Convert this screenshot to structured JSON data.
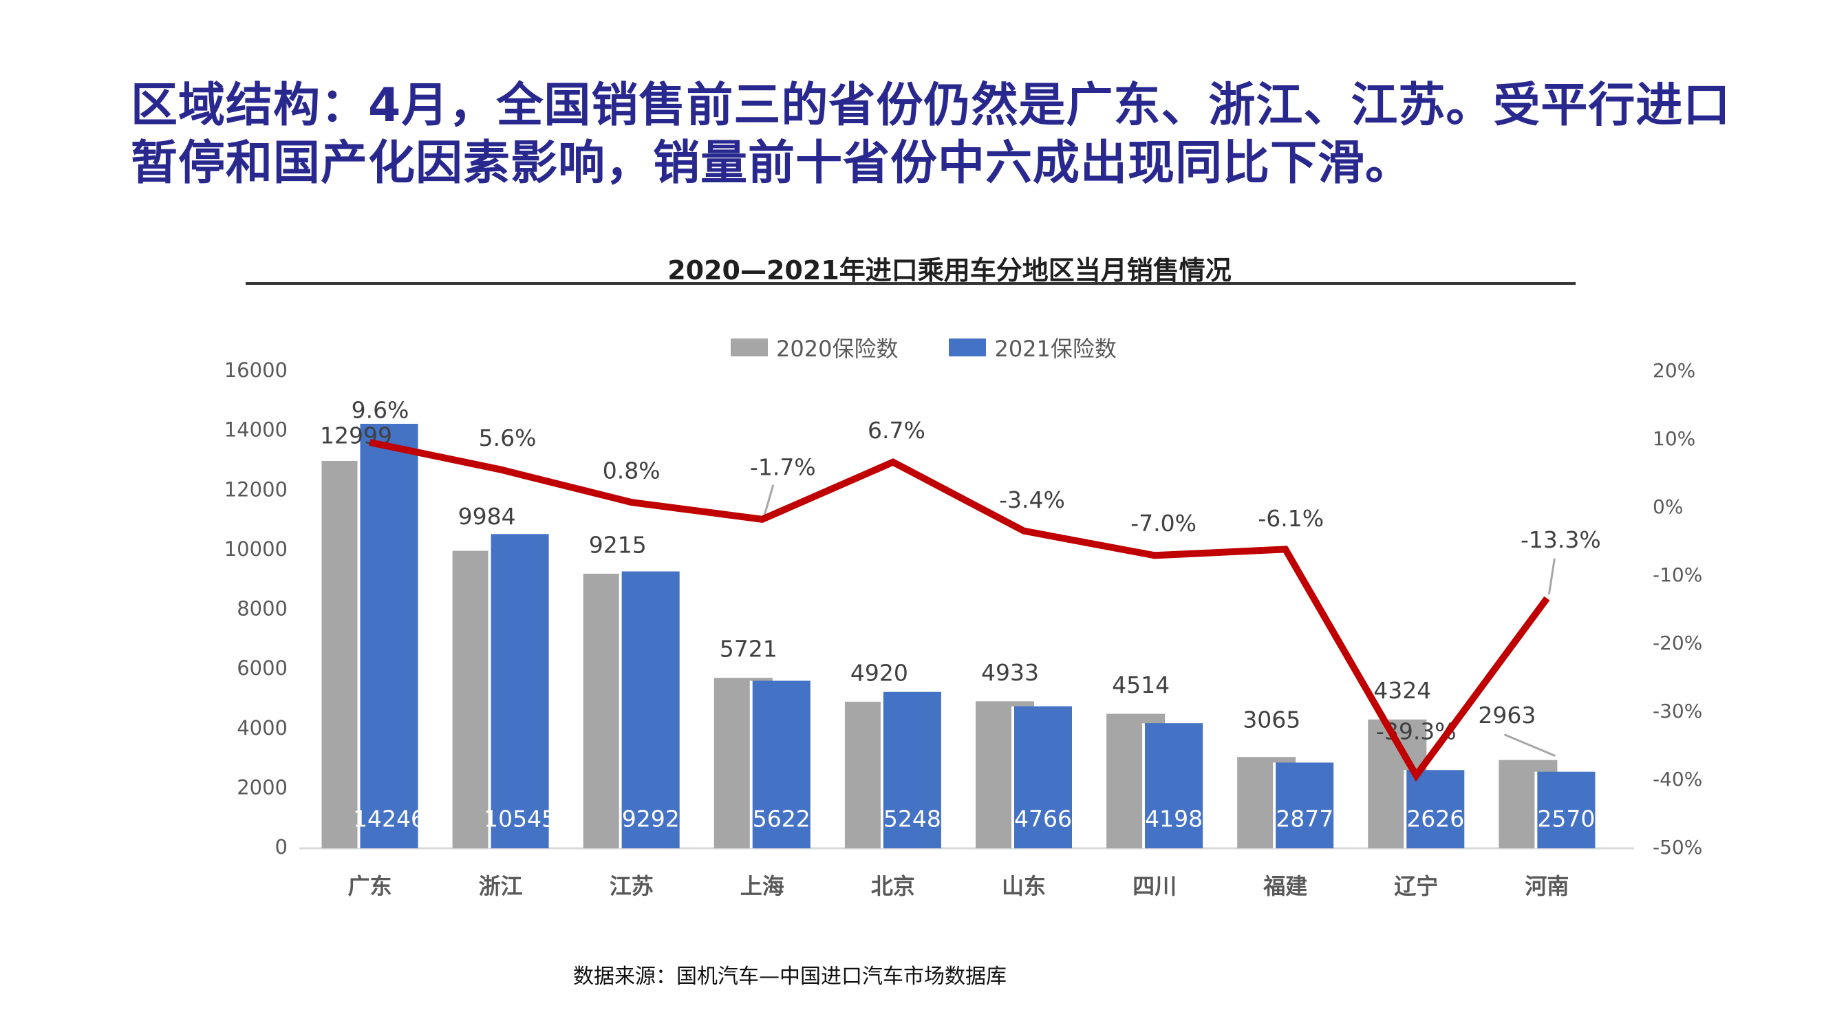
{
  "page": {
    "title_lines": [
      "区域结构：4月，全国销售前三的省份仍然是广东、浙江、江苏。受平行进口",
      "暂停和国产化因素影响，销量前十省份中六成出现同比下滑。"
    ],
    "title_color": "#28288f",
    "source": "数据来源：国机汽车—中国进口汽车市场数据库"
  },
  "chart_data": {
    "type": "bar",
    "title": "2020—2021年进口乘用车分地区当月销售情况",
    "categories": [
      "广东",
      "浙江",
      "江苏",
      "上海",
      "北京",
      "山东",
      "四川",
      "福建",
      "辽宁",
      "河南"
    ],
    "series": [
      {
        "name": "2020保险数",
        "type": "bar",
        "color": "#a6a6a6",
        "values": [
          12999,
          9984,
          9215,
          5721,
          4920,
          4933,
          4514,
          3065,
          4324,
          2963
        ]
      },
      {
        "name": "2021保险数",
        "type": "bar",
        "color": "#4472c4",
        "values": [
          14246,
          10545,
          9292,
          5622,
          5248,
          4766,
          4198,
          2877,
          2626,
          2570
        ]
      },
      {
        "type": "line",
        "color": "#c00000",
        "axis": "right",
        "values": [
          9.6,
          5.6,
          0.8,
          -1.7,
          6.7,
          -3.4,
          -7.0,
          -6.1,
          -39.3,
          -13.3
        ],
        "labels": [
          "9.6%",
          "5.6%",
          "0.8%",
          "-1.7%",
          "6.7%",
          "-3.4%",
          "-7.0%",
          "-6.1%",
          "-39.3%",
          "-13.3%"
        ]
      }
    ],
    "left_axis": {
      "min": 0,
      "max": 16000,
      "step": 2000,
      "ticks": [
        "16000",
        "14000",
        "12000",
        "10000",
        "8000",
        "6000",
        "4000",
        "2000",
        "0"
      ]
    },
    "right_axis": {
      "min": -50,
      "max": 20,
      "step": 10,
      "ticks": [
        "20%",
        "10%",
        "0%",
        "-10%",
        "-20%",
        "-30%",
        "-40%",
        "-50%"
      ]
    },
    "legend": [
      "2020保险数",
      "2021保险数"
    ],
    "legend_position": "top",
    "grid": false,
    "colors": {
      "axis_text": "#595959",
      "bar_label_dark": "#404040",
      "bar_label_light": "#ffffff",
      "category_text": "#595959",
      "baseline": "#d9d9d9",
      "leader_line": "#a6a6a6",
      "title_text": "#1f1f1f"
    }
  }
}
